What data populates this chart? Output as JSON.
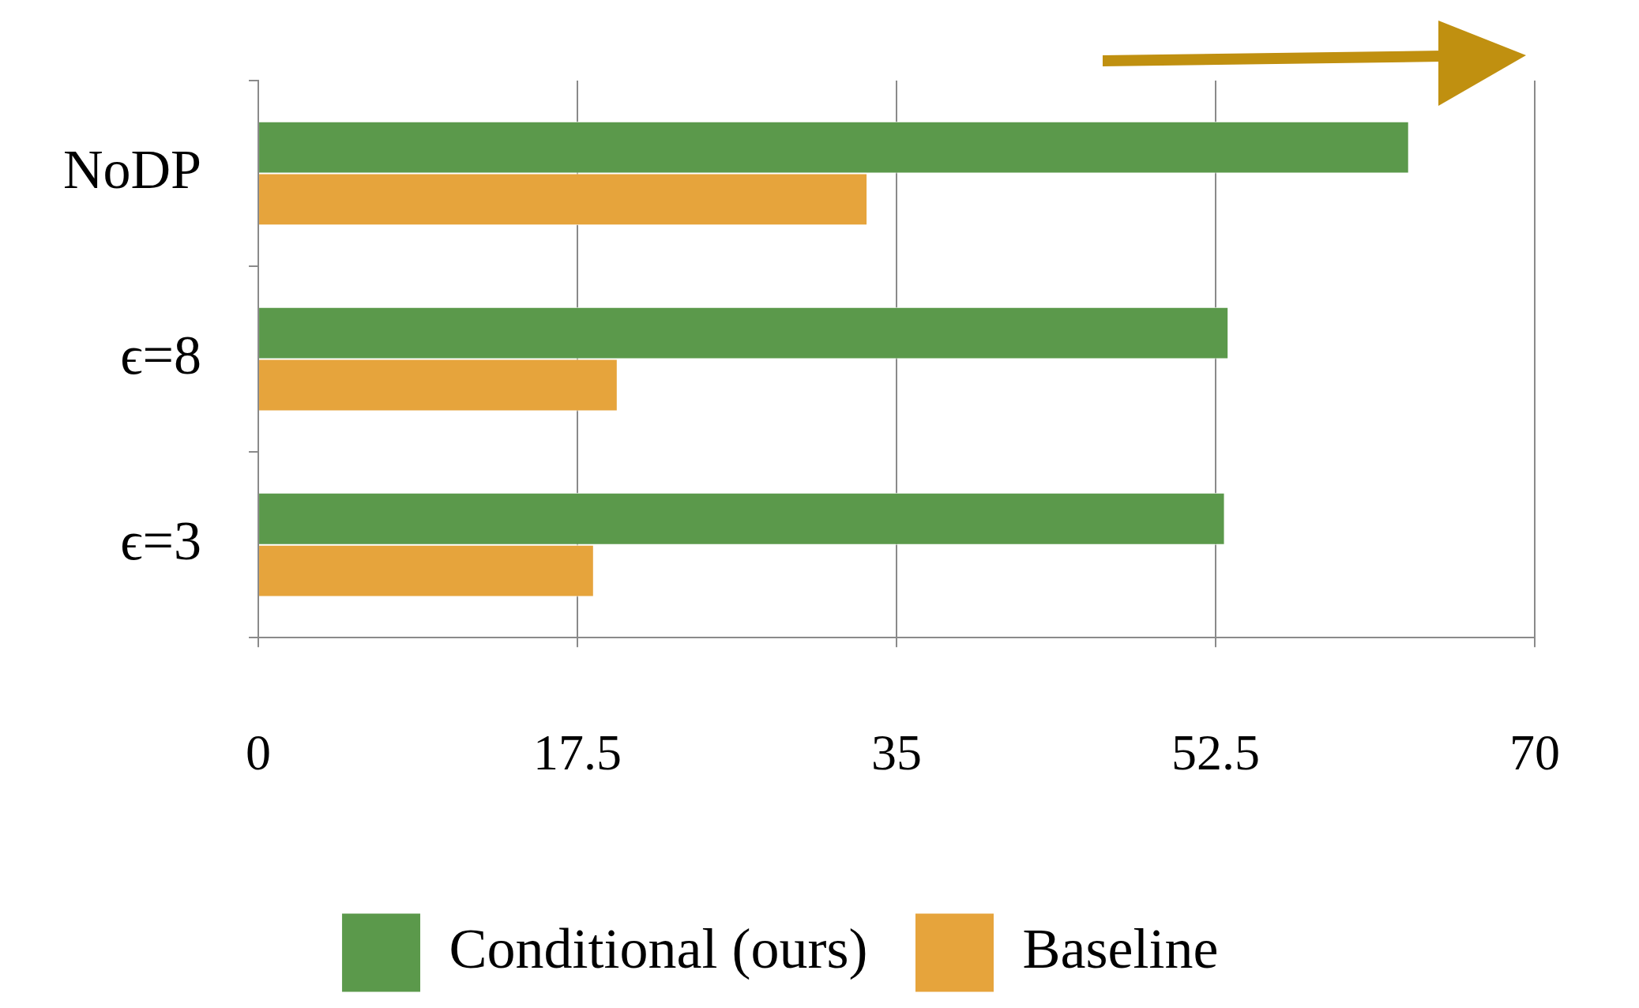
{
  "chart_data": {
    "type": "bar",
    "orientation": "horizontal",
    "categories": [
      "NoDP",
      "ϵ=8",
      "ϵ=3"
    ],
    "series": [
      {
        "name": "Conditional (ours)",
        "color": "#5b994b",
        "values": [
          63.1,
          53.2,
          53.0
        ]
      },
      {
        "name": "Baseline",
        "color": "#e6a43c",
        "values": [
          33.4,
          19.7,
          18.4
        ]
      }
    ],
    "xlim": [
      0,
      70
    ],
    "xticks": [
      0,
      17.5,
      35,
      52.5,
      70
    ],
    "grid": "x",
    "legend": "bottom"
  }
}
